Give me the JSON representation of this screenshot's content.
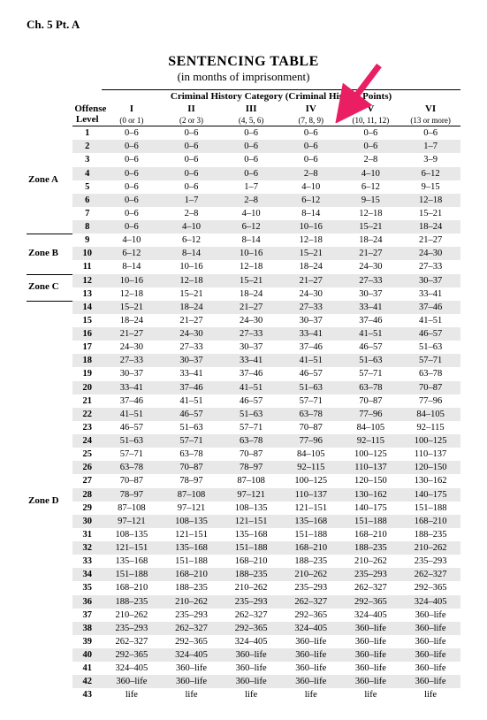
{
  "chapter": "Ch. 5 Pt. A",
  "title": "SENTENCING TABLE",
  "subtitle": "(in months of imprisonment)",
  "header_group": "Criminal History Category  (Criminal History Points)",
  "offense_label_1": "Offense",
  "offense_label_2": "Level",
  "categories": [
    {
      "roman": "I",
      "points": "(0 or 1)"
    },
    {
      "roman": "II",
      "points": "(2 or 3)"
    },
    {
      "roman": "III",
      "points": "(4, 5, 6)"
    },
    {
      "roman": "IV",
      "points": "(7, 8, 9)"
    },
    {
      "roman": "V",
      "points": "(10, 11, 12)"
    },
    {
      "roman": "VI",
      "points": "(13 or more)"
    }
  ],
  "zones": {
    "A": "Zone A",
    "B": "Zone B",
    "C": "Zone C",
    "D": "Zone D"
  },
  "rows": [
    [
      "0–6",
      "0–6",
      "0–6",
      "0–6",
      "0–6",
      "0–6"
    ],
    [
      "0–6",
      "0–6",
      "0–6",
      "0–6",
      "0–6",
      "1–7"
    ],
    [
      "0–6",
      "0–6",
      "0–6",
      "0–6",
      "2–8",
      "3–9"
    ],
    [
      "0–6",
      "0–6",
      "0–6",
      "2–8",
      "4–10",
      "6–12"
    ],
    [
      "0–6",
      "0–6",
      "1–7",
      "4–10",
      "6–12",
      "9–15"
    ],
    [
      "0–6",
      "1–7",
      "2–8",
      "6–12",
      "9–15",
      "12–18"
    ],
    [
      "0–6",
      "2–8",
      "4–10",
      "8–14",
      "12–18",
      "15–21"
    ],
    [
      "0–6",
      "4–10",
      "6–12",
      "10–16",
      "15–21",
      "18–24"
    ],
    [
      "4–10",
      "6–12",
      "8–14",
      "12–18",
      "18–24",
      "21–27"
    ],
    [
      "6–12",
      "8–14",
      "10–16",
      "15–21",
      "21–27",
      "24–30"
    ],
    [
      "8–14",
      "10–16",
      "12–18",
      "18–24",
      "24–30",
      "27–33"
    ],
    [
      "10–16",
      "12–18",
      "15–21",
      "21–27",
      "27–33",
      "30–37"
    ],
    [
      "12–18",
      "15–21",
      "18–24",
      "24–30",
      "30–37",
      "33–41"
    ],
    [
      "15–21",
      "18–24",
      "21–27",
      "27–33",
      "33–41",
      "37–46"
    ],
    [
      "18–24",
      "21–27",
      "24–30",
      "30–37",
      "37–46",
      "41–51"
    ],
    [
      "21–27",
      "24–30",
      "27–33",
      "33–41",
      "41–51",
      "46–57"
    ],
    [
      "24–30",
      "27–33",
      "30–37",
      "37–46",
      "46–57",
      "51–63"
    ],
    [
      "27–33",
      "30–37",
      "33–41",
      "41–51",
      "51–63",
      "57–71"
    ],
    [
      "30–37",
      "33–41",
      "37–46",
      "46–57",
      "57–71",
      "63–78"
    ],
    [
      "33–41",
      "37–46",
      "41–51",
      "51–63",
      "63–78",
      "70–87"
    ],
    [
      "37–46",
      "41–51",
      "46–57",
      "57–71",
      "70–87",
      "77–96"
    ],
    [
      "41–51",
      "46–57",
      "51–63",
      "63–78",
      "77–96",
      "84–105"
    ],
    [
      "46–57",
      "51–63",
      "57–71",
      "70–87",
      "84–105",
      "92–115"
    ],
    [
      "51–63",
      "57–71",
      "63–78",
      "77–96",
      "92–115",
      "100–125"
    ],
    [
      "57–71",
      "63–78",
      "70–87",
      "84–105",
      "100–125",
      "110–137"
    ],
    [
      "63–78",
      "70–87",
      "78–97",
      "92–115",
      "110–137",
      "120–150"
    ],
    [
      "70–87",
      "78–97",
      "87–108",
      "100–125",
      "120–150",
      "130–162"
    ],
    [
      "78–97",
      "87–108",
      "97–121",
      "110–137",
      "130–162",
      "140–175"
    ],
    [
      "87–108",
      "97–121",
      "108–135",
      "121–151",
      "140–175",
      "151–188"
    ],
    [
      "97–121",
      "108–135",
      "121–151",
      "135–168",
      "151–188",
      "168–210"
    ],
    [
      "108–135",
      "121–151",
      "135–168",
      "151–188",
      "168–210",
      "188–235"
    ],
    [
      "121–151",
      "135–168",
      "151–188",
      "168–210",
      "188–235",
      "210–262"
    ],
    [
      "135–168",
      "151–188",
      "168–210",
      "188–235",
      "210–262",
      "235–293"
    ],
    [
      "151–188",
      "168–210",
      "188–235",
      "210–262",
      "235–293",
      "262–327"
    ],
    [
      "168–210",
      "188–235",
      "210–262",
      "235–293",
      "262–327",
      "292–365"
    ],
    [
      "188–235",
      "210–262",
      "235–293",
      "262–327",
      "292–365",
      "324–405"
    ],
    [
      "210–262",
      "235–293",
      "262–327",
      "292–365",
      "324–405",
      "360–life"
    ],
    [
      "235–293",
      "262–327",
      "292–365",
      "324–405",
      "360–life",
      "360–life"
    ],
    [
      "262–327",
      "292–365",
      "324–405",
      "360–life",
      "360–life",
      "360–life"
    ],
    [
      "292–365",
      "324–405",
      "360–life",
      "360–life",
      "360–life",
      "360–life"
    ],
    [
      "324–405",
      "360–life",
      "360–life",
      "360–life",
      "360–life",
      "360–life"
    ],
    [
      "360–life",
      "360–life",
      "360–life",
      "360–life",
      "360–life",
      "360–life"
    ],
    [
      "life",
      "life",
      "life",
      "life",
      "life",
      "life"
    ]
  ],
  "arrow_color": "#e91e63"
}
